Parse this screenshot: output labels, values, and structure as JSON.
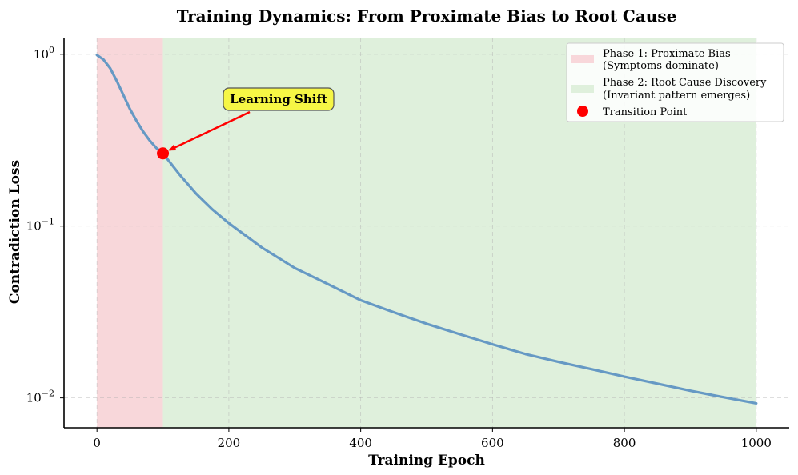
{
  "colors": {
    "phase1_fill": "#f8d7da",
    "phase2_fill": "#dff0dc",
    "curve": "#6699c4",
    "transition": "#ff0000",
    "annotation_box": "#f6f645",
    "arrow": "#ff0000"
  },
  "chart_data": {
    "type": "line",
    "title": "Training Dynamics: From Proximate Bias to Root Cause",
    "xlabel": "Training Epoch",
    "ylabel": "Contradiction Loss",
    "xlim": [
      -50,
      1050
    ],
    "ylim": [
      0.0067,
      1.25
    ],
    "yscale": "log",
    "grid": true,
    "legend_position": "top-right",
    "x_ticks": [
      0,
      200,
      400,
      600,
      800,
      1000
    ],
    "x_tick_labels": [
      "0",
      "200",
      "400",
      "600",
      "800",
      "1000"
    ],
    "y_ticks": [
      1,
      0.1,
      0.01
    ],
    "y_tick_bases": [
      "10",
      "10",
      "10"
    ],
    "y_tick_exponents": [
      "0",
      "−1",
      "−2"
    ],
    "phases": [
      {
        "name": "Phase 1: Proximate Bias",
        "subtitle": "(Symptoms dominate)",
        "x_start": 0,
        "x_end": 100
      },
      {
        "name": "Phase 2: Root Cause Discovery",
        "subtitle": "(Invariant pattern emerges)",
        "x_start": 100,
        "x_end": 1000
      }
    ],
    "series": [
      {
        "x": [
          0,
          10,
          20,
          30,
          40,
          50,
          60,
          70,
          80,
          90,
          100,
          125,
          150,
          175,
          200,
          250,
          300,
          350,
          400,
          450,
          500,
          550,
          600,
          650,
          700,
          750,
          800,
          850,
          900,
          950,
          1000
        ],
        "y": [
          0.99,
          0.93,
          0.83,
          0.7,
          0.58,
          0.48,
          0.41,
          0.355,
          0.315,
          0.285,
          0.265,
          0.2,
          0.155,
          0.125,
          0.104,
          0.075,
          0.057,
          0.046,
          0.037,
          0.0315,
          0.027,
          0.0235,
          0.0205,
          0.018,
          0.0162,
          0.0147,
          0.0133,
          0.0121,
          0.011,
          0.0101,
          0.0093
        ]
      }
    ],
    "transition_point": {
      "label": "Transition Point",
      "x": 100,
      "y": 0.265
    },
    "annotation": {
      "text": "Learning Shift",
      "x": 100,
      "y": 0.265
    }
  }
}
